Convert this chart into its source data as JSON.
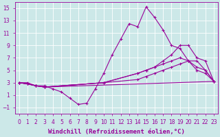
{
  "background_color": "#cce8e8",
  "line_color": "#990099",
  "grid_color": "#ffffff",
  "xlabel": "Windchill (Refroidissement éolien,°C)",
  "xlabel_fontsize": 6.5,
  "tick_fontsize": 5.5,
  "xlim": [
    -0.5,
    23.5
  ],
  "ylim": [
    -2,
    16
  ],
  "yticks": [
    -1,
    1,
    3,
    5,
    7,
    9,
    11,
    13,
    15
  ],
  "xticks": [
    0,
    1,
    2,
    3,
    4,
    5,
    6,
    7,
    8,
    9,
    10,
    11,
    12,
    13,
    14,
    15,
    16,
    17,
    18,
    19,
    20,
    21,
    22,
    23
  ],
  "lines": [
    {
      "x": [
        0,
        1,
        2,
        3,
        4,
        5,
        6,
        7,
        8,
        9,
        10,
        11,
        12,
        13,
        14,
        15,
        16,
        17,
        18,
        19,
        20,
        21,
        22,
        23
      ],
      "y": [
        3,
        3,
        2.5,
        2.5,
        2,
        1.5,
        0.5,
        -0.5,
        -0.3,
        2,
        4.5,
        7.5,
        10,
        12.5,
        12,
        15.2,
        13.5,
        11.5,
        9,
        8.5,
        6.5,
        5,
        4.5,
        3.2
      ]
    },
    {
      "x": [
        0,
        1,
        2,
        3,
        10,
        14,
        15,
        16,
        17,
        18,
        19,
        20,
        21,
        22,
        23
      ],
      "y": [
        3,
        2.8,
        2.5,
        2.3,
        3.0,
        4.5,
        5.0,
        5.5,
        6.5,
        7.5,
        9.0,
        9.0,
        7.0,
        6.5,
        3.2
      ]
    },
    {
      "x": [
        0,
        1,
        2,
        3,
        10,
        14,
        15,
        16,
        17,
        18,
        19,
        20,
        21,
        22,
        23
      ],
      "y": [
        3,
        2.8,
        2.5,
        2.3,
        3.0,
        4.5,
        5.0,
        5.5,
        6.0,
        6.5,
        7.0,
        6.5,
        5.5,
        5.0,
        3.2
      ]
    },
    {
      "x": [
        0,
        1,
        2,
        3,
        10,
        14,
        15,
        16,
        17,
        18,
        19,
        20,
        21,
        22,
        23
      ],
      "y": [
        3,
        2.8,
        2.5,
        2.3,
        3.0,
        3.5,
        4.0,
        4.5,
        5.0,
        5.5,
        6.0,
        6.5,
        6.5,
        5.0,
        3.2
      ]
    },
    {
      "x": [
        0,
        1,
        2,
        3,
        23
      ],
      "y": [
        3,
        2.8,
        2.5,
        2.3,
        3.2
      ]
    }
  ]
}
